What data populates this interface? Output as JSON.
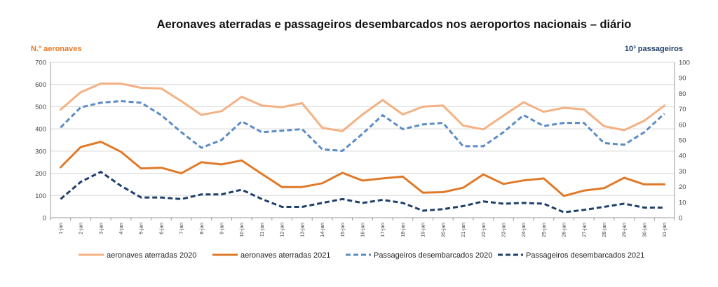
{
  "chart_data": {
    "type": "line",
    "title": "Aeronaves aterradas e passageiros desembarcados nos aeroportos nacionais – diário",
    "ylabel_left": "N.º aeronaves",
    "ylabel_right": "10³ passageiros",
    "ylim_left": [
      0,
      700
    ],
    "yticks_left": [
      0,
      100,
      200,
      300,
      400,
      500,
      600,
      700
    ],
    "ylim_right": [
      0,
      100
    ],
    "yticks_right": [
      0,
      10,
      20,
      30,
      40,
      50,
      60,
      70,
      80,
      90,
      100
    ],
    "categories": [
      "1-jan",
      "2-jan",
      "3-jan",
      "4-jan",
      "5-jan",
      "6-jan",
      "7-jan",
      "8-jan",
      "9-jan",
      "10-jan",
      "11-jan",
      "12-jan",
      "13-jan",
      "14-jan",
      "15-jan",
      "16-jan",
      "17-jan",
      "18-jan",
      "19-jan",
      "20-jan",
      "21-jan",
      "22-jan",
      "23-jan",
      "24-jan",
      "25-jan",
      "26-jan",
      "27-jan",
      "28-jan",
      "29-jan",
      "30-jan",
      "31-jan"
    ],
    "grid": "horizontal",
    "legend_position": "bottom",
    "series": [
      {
        "name": "aeronaves aterradas 2020",
        "axis": "left",
        "color": "#f4b183",
        "dash": "solid",
        "values": [
          487,
          565,
          604,
          604,
          585,
          582,
          525,
          463,
          480,
          545,
          505,
          498,
          516,
          405,
          390,
          465,
          530,
          465,
          500,
          505,
          415,
          398,
          460,
          520,
          477,
          495,
          488,
          412,
          394,
          437,
          505
        ]
      },
      {
        "name": "aeronaves aterradas 2021",
        "axis": "left",
        "color": "#e07a2a",
        "dash": "solid",
        "values": [
          227,
          318,
          342,
          297,
          222,
          225,
          200,
          250,
          240,
          258,
          197,
          138,
          138,
          155,
          202,
          167,
          177,
          185,
          113,
          115,
          135,
          195,
          152,
          168,
          177,
          98,
          122,
          133,
          180,
          150,
          150
        ]
      },
      {
        "name": "Passageiros desembarcados 2020",
        "axis": "right",
        "color": "#5b8cc6",
        "dash": "dashed",
        "values": [
          58,
          71,
          74,
          75,
          74,
          66,
          55,
          45,
          50,
          62,
          55,
          56,
          57,
          44,
          43,
          54,
          66,
          57,
          60,
          61,
          46,
          46,
          55,
          66,
          59,
          61,
          61,
          48,
          47,
          55,
          67
        ]
      },
      {
        "name": "Passageiros desembarcados 2021",
        "axis": "right",
        "color": "#1f3f6b",
        "dash": "dashed",
        "values": [
          12,
          23,
          29.5,
          20.5,
          13,
          13,
          12,
          15,
          15,
          18,
          12,
          7,
          7,
          9.5,
          12,
          9.5,
          11.5,
          9.5,
          4.5,
          5.5,
          7.5,
          10.5,
          9,
          9.5,
          9,
          3.5,
          5,
          7,
          9,
          6.5,
          6.5
        ]
      }
    ]
  }
}
